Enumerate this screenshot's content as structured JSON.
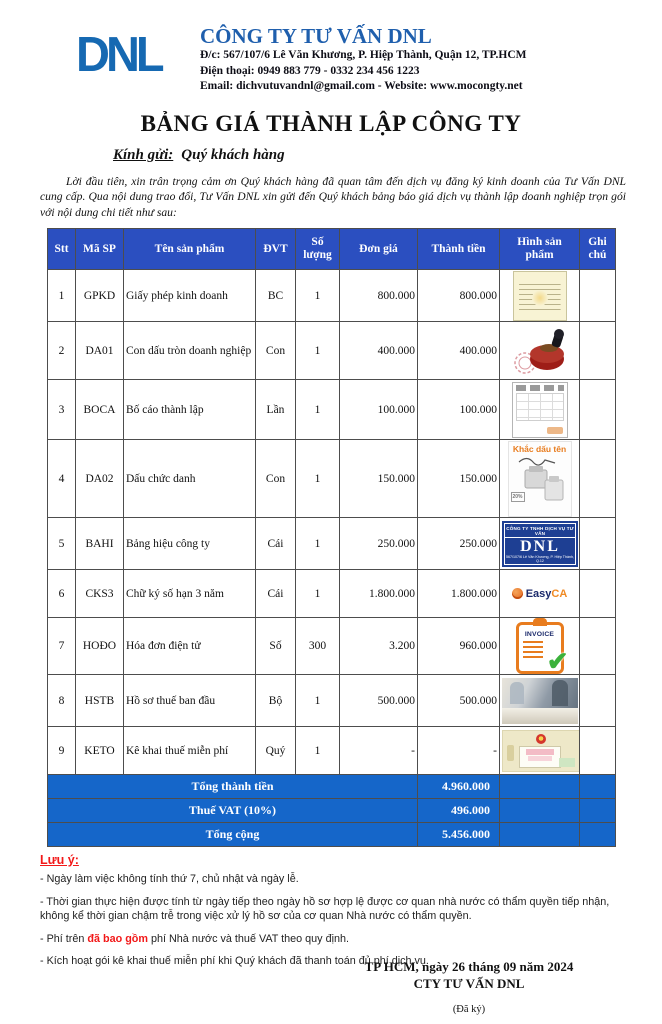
{
  "colors": {
    "brand_blue": "#1f5fad",
    "logo_blue": "#1669b2",
    "table_header_bg": "#2b4fc0",
    "summary_bg": "#1566c9",
    "note_red": "#f21818"
  },
  "header": {
    "logo_text": "DNL",
    "company_name": "CÔNG TY TƯ VẤN DNL",
    "address_line": "Đ/c: 567/107/6 Lê Văn Khương, P. Hiệp Thành, Quận 12, TP.HCM",
    "phone_line": "Điện thoại: 0949 883 779 - 0332 234 456 1223",
    "email_line": "Email: dichvutuvandnl@gmail.com - Website: www.mocongty.net"
  },
  "title": "BẢNG GIÁ THÀNH LẬP CÔNG TY",
  "greeting": {
    "label": "Kính gửi:",
    "value": "Quý khách hàng"
  },
  "intro": "Lời đầu tiên, xin trân trọng cảm ơn Quý khách hàng đã quan tâm đến dịch vụ đăng ký kinh doanh của Tư Vấn DNL cung cấp. Qua nội dung trao đổi, Tư Vấn DNL xin gửi đến Quý khách bảng báo giá dịch vụ thành lập doanh nghiệp trọn gói với nội dung chi tiết như sau:",
  "table": {
    "headers": [
      "Stt",
      "Mã SP",
      "Tên sản phẩm",
      "ĐVT",
      "Số lượng",
      "Đơn giá",
      "Thành tiền",
      "Hình sản phẩm",
      "Ghi chú"
    ],
    "rows": [
      {
        "stt": "1",
        "code": "GPKD",
        "name": "Giấy phép kinh doanh",
        "unit": "BC",
        "qty": "1",
        "price": "800.000",
        "amount": "800.000",
        "image": "business-license-photo",
        "note": ""
      },
      {
        "stt": "2",
        "code": "DA01",
        "name": "Con dấu tròn doanh nghiệp",
        "unit": "Con",
        "qty": "1",
        "price": "400.000",
        "amount": "400.000",
        "image": "round-stamp-photo",
        "note": ""
      },
      {
        "stt": "3",
        "code": "BOCA",
        "name": "Bố cáo thành lập",
        "unit": "Lần",
        "qty": "1",
        "price": "100.000",
        "amount": "100.000",
        "image": "announcement-doc-photo",
        "note": ""
      },
      {
        "stt": "4",
        "code": "DA02",
        "name": "Dấu chức danh",
        "unit": "Con",
        "qty": "1",
        "price": "150.000",
        "amount": "150.000",
        "image": "title-stamp-photo",
        "note": ""
      },
      {
        "stt": "5",
        "code": "BAHI",
        "name": "Bảng hiệu công ty",
        "unit": "Cái",
        "qty": "1",
        "price": "250.000",
        "amount": "250.000",
        "image": "company-sign-photo",
        "note": ""
      },
      {
        "stt": "6",
        "code": "CKS3",
        "name": "Chữ ký số hạn 3 năm",
        "unit": "Cái",
        "qty": "1",
        "price": "1.800.000",
        "amount": "1.800.000",
        "image": "easyca-logo",
        "note": ""
      },
      {
        "stt": "7",
        "code": "HOĐO",
        "name": "Hóa đơn điện tử",
        "unit": "Số",
        "qty": "300",
        "price": "3.200",
        "amount": "960.000",
        "image": "invoice-icon",
        "note": ""
      },
      {
        "stt": "8",
        "code": "HSTB",
        "name": "Hồ sơ thuế ban đầu",
        "unit": "Bộ",
        "qty": "1",
        "price": "500.000",
        "amount": "500.000",
        "image": "office-photo",
        "note": ""
      },
      {
        "stt": "9",
        "code": "KETO",
        "name": "Kê khai thuế miễn phí",
        "unit": "Quý",
        "qty": "1",
        "price": "-",
        "amount": "-",
        "image": "tax-portal-photo",
        "note": ""
      }
    ],
    "summary": [
      {
        "label": "Tổng thành tiền",
        "value": "4.960.000"
      },
      {
        "label": "Thuế VAT (10%)",
        "value": "496.000"
      },
      {
        "label": "Tổng cộng",
        "value": "5.456.000"
      }
    ]
  },
  "product_images": {
    "company_sign": {
      "line1": "CÔNG TY TNHH DỊCH VỤ TƯ VẤN",
      "line2": "DNL",
      "line3": "567/107/6 Lê Văn Khương, P. Hiệp Thành, Q.12",
      "line4": "MST : 0314266498"
    },
    "title_stamp": {
      "caption": "Khắc dấu tên",
      "badge": "20%"
    },
    "easyca": {
      "word1": "Easy",
      "word2": "CA"
    },
    "invoice": {
      "label": "INVOICE",
      "check": "✔"
    }
  },
  "notes": {
    "title": "Lưu ý:",
    "items": [
      {
        "parts": [
          {
            "text": "- Ngày làm việc không tính thứ 7, chủ nhật và ngày lễ."
          }
        ]
      },
      {
        "parts": [
          {
            "text": "- Thời gian thực hiện được tính từ ngày tiếp theo ngày hồ sơ hợp lệ được cơ quan nhà nước có thẩm quyền tiếp nhận, không kể thời gian chậm trễ trong việc xử lý hồ sơ của cơ quan Nhà nước có thẩm quyền."
          }
        ]
      },
      {
        "parts": [
          {
            "text": "- Phí trên "
          },
          {
            "text": "đã bao gồm",
            "red": true
          },
          {
            "text": " phí Nhà nước và thuế VAT theo quy định."
          }
        ]
      },
      {
        "parts": [
          {
            "text": "- Kích hoạt gói kê khai thuế miễn phí khi Quý khách đã thanh toán đủ phí dịch vụ."
          }
        ]
      }
    ]
  },
  "footer": {
    "date_line": "TP HCM, ngày 26 tháng 09 năm 2024",
    "company_line": "CTY TƯ VẤN DNL",
    "signed": "(Đã ký)",
    "dots": "......................................"
  }
}
